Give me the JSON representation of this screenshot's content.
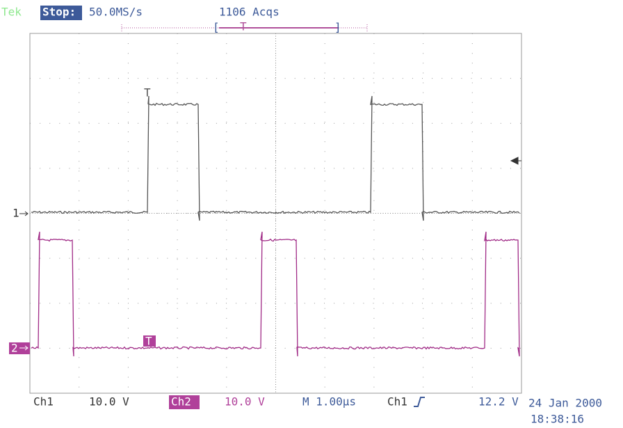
{
  "header": {
    "brand": "Tek",
    "state": "Stop:",
    "sample_rate": "50.0MS/s",
    "acquisitions": "1106 Acqs",
    "trigger_bar": {
      "left": "[",
      "marker": "T",
      "right": "]"
    }
  },
  "markers": {
    "ch1_ground": "1",
    "ch2_ground": "2",
    "ch1_trigger": "T",
    "ch2_trigger": "T"
  },
  "footer": {
    "ch1_label": "Ch1",
    "ch1_scale": "10.0 V",
    "ch2_label": "Ch2",
    "ch2_scale": "10.0 V",
    "timebase": "M 1.00µs",
    "trigger_source": "Ch1",
    "trigger_level": "12.2 V",
    "date": "24 Jan 2000",
    "time": "18:38:16"
  }
}
